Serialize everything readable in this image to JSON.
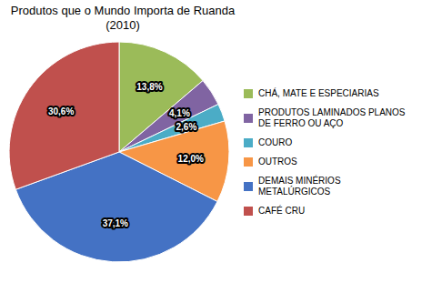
{
  "chart_data": {
    "type": "pie",
    "title": "Produtos que o Mundo Importa de Ruanda\n(2010)",
    "categories": [
      "CHÁ, MATE E ESPECIARIAS",
      "PRODUTOS LAMINADOS PLANOS\nDE FERRO OU AÇO",
      "COURO",
      "OUTROS",
      "DEMAIS MINÉRIOS\nMETALÚRGICOS",
      "CAFÉ CRU"
    ],
    "values": [
      13.8,
      4.1,
      2.6,
      12.0,
      37.1,
      30.6
    ],
    "value_labels": [
      "13,8%",
      "4,1%",
      "2,6%",
      "12,0%",
      "37,1%",
      "30,6%"
    ],
    "colors": [
      "#9BBB59",
      "#8064A2",
      "#4BACC6",
      "#F79646",
      "#4472C4",
      "#C0504D"
    ],
    "data_labels": true,
    "legend": "right"
  }
}
